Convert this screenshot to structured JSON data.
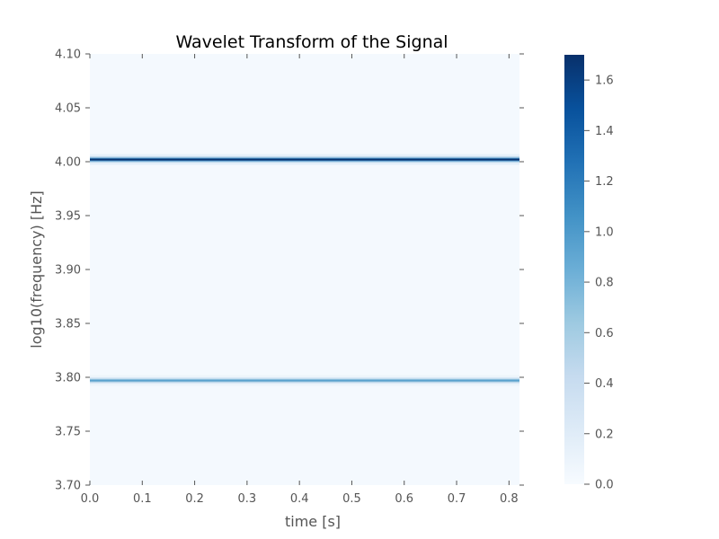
{
  "chart_data": {
    "type": "heatmap",
    "title": "Wavelet Transform of the Signal",
    "xlabel": "time [s]",
    "ylabel": "log10(frequency) [Hz]",
    "xlim": [
      0.0,
      0.82
    ],
    "ylim": [
      3.7,
      4.1
    ],
    "x_ticks": [
      "0.0",
      "0.1",
      "0.2",
      "0.3",
      "0.4",
      "0.5",
      "0.6",
      "0.7",
      "0.8"
    ],
    "y_ticks": [
      "3.70",
      "3.75",
      "3.80",
      "3.85",
      "3.90",
      "3.95",
      "4.00",
      "4.05",
      "4.10"
    ],
    "colorbar": {
      "range": [
        0.0,
        1.7
      ],
      "ticks": [
        "0.0",
        "0.2",
        "0.4",
        "0.6",
        "0.8",
        "1.0",
        "1.2",
        "1.4",
        "1.6"
      ],
      "colormap": "Blues",
      "colors": [
        "#f7fbff",
        "#deebf7",
        "#c6dbef",
        "#9ecae1",
        "#6baed6",
        "#4292c6",
        "#2171b5",
        "#08519c",
        "#08306b"
      ]
    },
    "series": [
      {
        "y": 4.002,
        "peak": 1.68,
        "x": [
          0.0,
          0.82
        ]
      },
      {
        "y": 3.797,
        "peak": 0.95,
        "x": [
          0.0,
          0.82
        ]
      }
    ],
    "grid": false
  }
}
